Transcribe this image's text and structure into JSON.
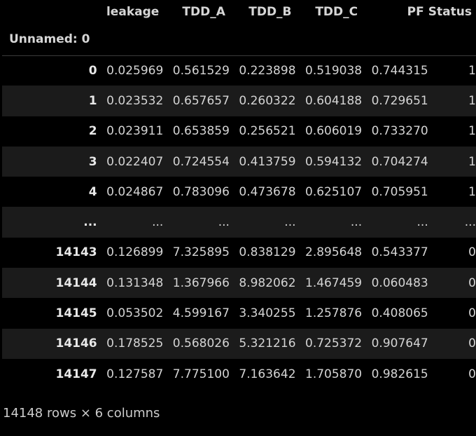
{
  "dataframe": {
    "index_name": "Unnamed: 0",
    "columns": [
      "leakage",
      "TDD_A",
      "TDD_B",
      "TDD_C",
      "PF",
      "Status"
    ],
    "rows": [
      {
        "index": "0",
        "values": [
          "0.025969",
          "0.561529",
          "0.223898",
          "0.519038",
          "0.744315",
          "1"
        ]
      },
      {
        "index": "1",
        "values": [
          "0.023532",
          "0.657657",
          "0.260322",
          "0.604188",
          "0.729651",
          "1"
        ]
      },
      {
        "index": "2",
        "values": [
          "0.023911",
          "0.653859",
          "0.256521",
          "0.606019",
          "0.733270",
          "1"
        ]
      },
      {
        "index": "3",
        "values": [
          "0.022407",
          "0.724554",
          "0.413759",
          "0.594132",
          "0.704274",
          "1"
        ]
      },
      {
        "index": "4",
        "values": [
          "0.024867",
          "0.783096",
          "0.473678",
          "0.625107",
          "0.705951",
          "1"
        ]
      },
      {
        "index": "...",
        "values": [
          "...",
          "...",
          "...",
          "...",
          "...",
          "..."
        ]
      },
      {
        "index": "14143",
        "values": [
          "0.126899",
          "7.325895",
          "0.838129",
          "2.895648",
          "0.543377",
          "0"
        ]
      },
      {
        "index": "14144",
        "values": [
          "0.131348",
          "1.367966",
          "8.982062",
          "1.467459",
          "0.060483",
          "0"
        ]
      },
      {
        "index": "14145",
        "values": [
          "0.053502",
          "4.599167",
          "3.340255",
          "1.257876",
          "0.408065",
          "0"
        ]
      },
      {
        "index": "14146",
        "values": [
          "0.178525",
          "0.568026",
          "5.321216",
          "0.725372",
          "0.907647",
          "0"
        ]
      },
      {
        "index": "14147",
        "values": [
          "0.127587",
          "7.775100",
          "7.163642",
          "1.705870",
          "0.982615",
          "0"
        ]
      }
    ],
    "shape_text": "14148 rows × 6 columns"
  },
  "colors": {
    "background": "#000000",
    "stripe": "#1b1b1b",
    "text": "#d4d4d4"
  }
}
